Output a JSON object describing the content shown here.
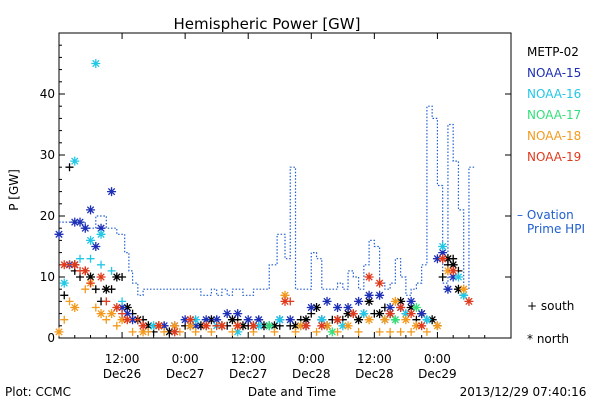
{
  "chart_data": {
    "type": "scatter",
    "title": "Hemispheric Power [GW]",
    "ylabel": "P [GW]",
    "xlabel": "Date and Time",
    "ylim": [
      0,
      50
    ],
    "yticks": [
      0,
      10,
      20,
      30,
      40
    ],
    "xlim_hours": [
      0,
      86
    ],
    "xticks": [
      {
        "h": 12,
        "time": "12:00",
        "date": "Dec26"
      },
      {
        "h": 24,
        "time": "0:00",
        "date": "Dec27"
      },
      {
        "h": 36,
        "time": "12:00",
        "date": "Dec27"
      },
      {
        "h": 48,
        "time": "0:00",
        "date": "Dec28"
      },
      {
        "h": 60,
        "time": "12:00",
        "date": "Dec28"
      },
      {
        "h": 72,
        "time": "0:00",
        "date": "Dec29"
      }
    ],
    "legend": [
      {
        "name": "METP-02",
        "color": "#000000"
      },
      {
        "name": "NOAA-15",
        "color": "#1c2fb5"
      },
      {
        "name": "NOAA-16",
        "color": "#22c7e6"
      },
      {
        "name": "NOAA-17",
        "color": "#33e07a"
      },
      {
        "name": "NOAA-18",
        "color": "#f39a1e"
      },
      {
        "name": "NOAA-19",
        "color": "#e03a1c"
      }
    ],
    "ovation": {
      "label_line1": "– Ovation",
      "label_line2": "Prime HPI",
      "color": "#1f5fcf",
      "points": [
        [
          0,
          19
        ],
        [
          5,
          18
        ],
        [
          7,
          20
        ],
        [
          9,
          18
        ],
        [
          11,
          17
        ],
        [
          12.5,
          14
        ],
        [
          13.3,
          11
        ],
        [
          14,
          9
        ],
        [
          15,
          7
        ],
        [
          16,
          8
        ],
        [
          27,
          7
        ],
        [
          29,
          8
        ],
        [
          30,
          7
        ],
        [
          31,
          8
        ],
        [
          32,
          7
        ],
        [
          33,
          8
        ],
        [
          35,
          7
        ],
        [
          37,
          8
        ],
        [
          40,
          12
        ],
        [
          41.5,
          17
        ],
        [
          43,
          13
        ],
        [
          44,
          28
        ],
        [
          45,
          8
        ],
        [
          47,
          8
        ],
        [
          48,
          14
        ],
        [
          49,
          13
        ],
        [
          50,
          8
        ],
        [
          53,
          9
        ],
        [
          54,
          8
        ],
        [
          55,
          11
        ],
        [
          56,
          10
        ],
        [
          57,
          8
        ],
        [
          58,
          12
        ],
        [
          59,
          16
        ],
        [
          60,
          15
        ],
        [
          61,
          9
        ],
        [
          62,
          8
        ],
        [
          63,
          9
        ],
        [
          64,
          13
        ],
        [
          65,
          10
        ],
        [
          66,
          7
        ],
        [
          67,
          8
        ],
        [
          68,
          9
        ],
        [
          69,
          12
        ],
        [
          70,
          38
        ],
        [
          71,
          36
        ],
        [
          72,
          25
        ],
        [
          73,
          9
        ],
        [
          74,
          35
        ],
        [
          75,
          29
        ],
        [
          76,
          21
        ],
        [
          77,
          8
        ],
        [
          78,
          28
        ]
      ]
    },
    "markers": {
      "south_label": "+ south",
      "north_label": "* north"
    },
    "series": [
      {
        "name": "METP-02",
        "color": "#000000",
        "south": [
          [
            1,
            7
          ],
          [
            2,
            28
          ],
          [
            3,
            11
          ],
          [
            4,
            10
          ],
          [
            5,
            11
          ],
          [
            7,
            8
          ],
          [
            8,
            6
          ],
          [
            10,
            8
          ],
          [
            12,
            10
          ],
          [
            14,
            4
          ],
          [
            16,
            3
          ],
          [
            18,
            1
          ],
          [
            20,
            2
          ],
          [
            22,
            1
          ],
          [
            24,
            2
          ],
          [
            26,
            2
          ],
          [
            28,
            2
          ],
          [
            30,
            3
          ],
          [
            32,
            2
          ],
          [
            34,
            3
          ],
          [
            36,
            2
          ],
          [
            38,
            3
          ],
          [
            40,
            2
          ],
          [
            42,
            2
          ],
          [
            44,
            2
          ],
          [
            46,
            3
          ],
          [
            48,
            4
          ],
          [
            50,
            3
          ],
          [
            52,
            3
          ],
          [
            54,
            3
          ],
          [
            56,
            4
          ],
          [
            58,
            4
          ],
          [
            60,
            4
          ],
          [
            62,
            5
          ],
          [
            64,
            3
          ],
          [
            66,
            4
          ],
          [
            68,
            3
          ],
          [
            70,
            3
          ],
          [
            72,
            2
          ],
          [
            73,
            10
          ],
          [
            74,
            12
          ],
          [
            75,
            13
          ],
          [
            76,
            11
          ],
          [
            77,
            7
          ]
        ],
        "north": [
          [
            3,
            12
          ],
          [
            6,
            10
          ],
          [
            9,
            8
          ],
          [
            11,
            10
          ],
          [
            13,
            5
          ],
          [
            15,
            3
          ],
          [
            17,
            2
          ],
          [
            19,
            2
          ],
          [
            21,
            1
          ],
          [
            25,
            2
          ],
          [
            27,
            2
          ],
          [
            29,
            3
          ],
          [
            31,
            2
          ],
          [
            33,
            3
          ],
          [
            35,
            2
          ],
          [
            37,
            2
          ],
          [
            39,
            2
          ],
          [
            41,
            2
          ],
          [
            45,
            2
          ],
          [
            47,
            3
          ],
          [
            49,
            5
          ],
          [
            51,
            2
          ],
          [
            53,
            3
          ],
          [
            55,
            4
          ],
          [
            57,
            3
          ],
          [
            59,
            6
          ],
          [
            61,
            4
          ],
          [
            63,
            4
          ],
          [
            65,
            6
          ],
          [
            67,
            5
          ],
          [
            69,
            4
          ],
          [
            71,
            3
          ],
          [
            74,
            13
          ],
          [
            75,
            12
          ],
          [
            76,
            8
          ]
        ]
      },
      {
        "name": "NOAA-15",
        "color": "#1c2fb5",
        "south": [],
        "north": [
          [
            0,
            17
          ],
          [
            2,
            12
          ],
          [
            3,
            19
          ],
          [
            4,
            19
          ],
          [
            5,
            18
          ],
          [
            6,
            21
          ],
          [
            7,
            15
          ],
          [
            8,
            18
          ],
          [
            10,
            24
          ],
          [
            12,
            5
          ],
          [
            13,
            4
          ],
          [
            14,
            3
          ],
          [
            20,
            2
          ],
          [
            22,
            2
          ],
          [
            24,
            3
          ],
          [
            26,
            2
          ],
          [
            28,
            3
          ],
          [
            30,
            3
          ],
          [
            32,
            4
          ],
          [
            34,
            4
          ],
          [
            36,
            3
          ],
          [
            38,
            3
          ],
          [
            40,
            2
          ],
          [
            42,
            3
          ],
          [
            44,
            3
          ],
          [
            47,
            2
          ],
          [
            48,
            5
          ],
          [
            50,
            3
          ],
          [
            51,
            6
          ],
          [
            53,
            5
          ],
          [
            55,
            5
          ],
          [
            57,
            6
          ],
          [
            59,
            7
          ],
          [
            61,
            7
          ],
          [
            63,
            5
          ],
          [
            65,
            5
          ],
          [
            67,
            6
          ],
          [
            69,
            4
          ],
          [
            72,
            13
          ],
          [
            73,
            14
          ],
          [
            74,
            8
          ],
          [
            75,
            10
          ]
        ]
      },
      {
        "name": "NOAA-16",
        "color": "#22c7e6",
        "south": [
          [
            2,
            12
          ],
          [
            4,
            13
          ],
          [
            6,
            13
          ],
          [
            8,
            12
          ],
          [
            10,
            11
          ],
          [
            12,
            6
          ]
        ],
        "north": [
          [
            1,
            9
          ],
          [
            3,
            29
          ],
          [
            7,
            45
          ],
          [
            6,
            16
          ],
          [
            8,
            17
          ],
          [
            18,
            2
          ],
          [
            26,
            3
          ],
          [
            30,
            2
          ],
          [
            34,
            1
          ],
          [
            38,
            2
          ],
          [
            42,
            3
          ],
          [
            46,
            2
          ],
          [
            50,
            3
          ],
          [
            54,
            2
          ],
          [
            58,
            4
          ],
          [
            62,
            3
          ],
          [
            66,
            4
          ],
          [
            70,
            3
          ],
          [
            73,
            15
          ],
          [
            76,
            10
          ],
          [
            77,
            7
          ]
        ]
      },
      {
        "name": "NOAA-17",
        "color": "#33e07a",
        "south": [],
        "north": [
          [
            40,
            2
          ],
          [
            52,
            1
          ],
          [
            64,
            3
          ],
          [
            68,
            5
          ]
        ]
      },
      {
        "name": "NOAA-18",
        "color": "#f39a1e",
        "south": [
          [
            1,
            3
          ],
          [
            2,
            6
          ],
          [
            5,
            8
          ],
          [
            7,
            5
          ],
          [
            9,
            3
          ],
          [
            11,
            2
          ],
          [
            14,
            1
          ],
          [
            17,
            1
          ],
          [
            20,
            1
          ],
          [
            23,
            1
          ],
          [
            26,
            1
          ],
          [
            29,
            1
          ],
          [
            33,
            1
          ],
          [
            37,
            1
          ],
          [
            41,
            1
          ],
          [
            45,
            1
          ],
          [
            49,
            1
          ],
          [
            53,
            1
          ],
          [
            57,
            1
          ],
          [
            61,
            1
          ],
          [
            63,
            1
          ],
          [
            65,
            1
          ],
          [
            67,
            1
          ],
          [
            70,
            1
          ]
        ],
        "north": [
          [
            0,
            1
          ],
          [
            3,
            5
          ],
          [
            6,
            9
          ],
          [
            8,
            4
          ],
          [
            10,
            4
          ],
          [
            12,
            3
          ],
          [
            16,
            1
          ],
          [
            19,
            2
          ],
          [
            22,
            2
          ],
          [
            25,
            2
          ],
          [
            28,
            2
          ],
          [
            31,
            2
          ],
          [
            34,
            2
          ],
          [
            43,
            7
          ],
          [
            46,
            2
          ],
          [
            51,
            2
          ],
          [
            55,
            2
          ],
          [
            59,
            3
          ],
          [
            62,
            3
          ],
          [
            64,
            6
          ],
          [
            66,
            3
          ],
          [
            68,
            2
          ],
          [
            72,
            2
          ],
          [
            74,
            11
          ],
          [
            77,
            8
          ]
        ]
      },
      {
        "name": "NOAA-19",
        "color": "#e03a1c",
        "south": [
          [
            2,
            12
          ],
          [
            4,
            11
          ],
          [
            6,
            9
          ],
          [
            9,
            6
          ],
          [
            12,
            4
          ],
          [
            15,
            3
          ],
          [
            30,
            2
          ],
          [
            44,
            6
          ]
        ],
        "north": [
          [
            1,
            12
          ],
          [
            3,
            12
          ],
          [
            5,
            11
          ],
          [
            8,
            10
          ],
          [
            11,
            5
          ],
          [
            13,
            3
          ],
          [
            16,
            2
          ],
          [
            19,
            2
          ],
          [
            22,
            1
          ],
          [
            25,
            3
          ],
          [
            28,
            2
          ],
          [
            31,
            2
          ],
          [
            34,
            2
          ],
          [
            37,
            2
          ],
          [
            43,
            6
          ],
          [
            47,
            2
          ],
          [
            50,
            2
          ],
          [
            53,
            3
          ],
          [
            56,
            4
          ],
          [
            59,
            10
          ],
          [
            61,
            9
          ],
          [
            63,
            4
          ],
          [
            65,
            5
          ],
          [
            67,
            4
          ],
          [
            69,
            2
          ],
          [
            73,
            13
          ],
          [
            75,
            11
          ],
          [
            78,
            6
          ]
        ]
      }
    ]
  },
  "footer": {
    "left": "Plot: CCMC",
    "center": "Date and Time",
    "right": "2013/12/29 07:40:16"
  }
}
